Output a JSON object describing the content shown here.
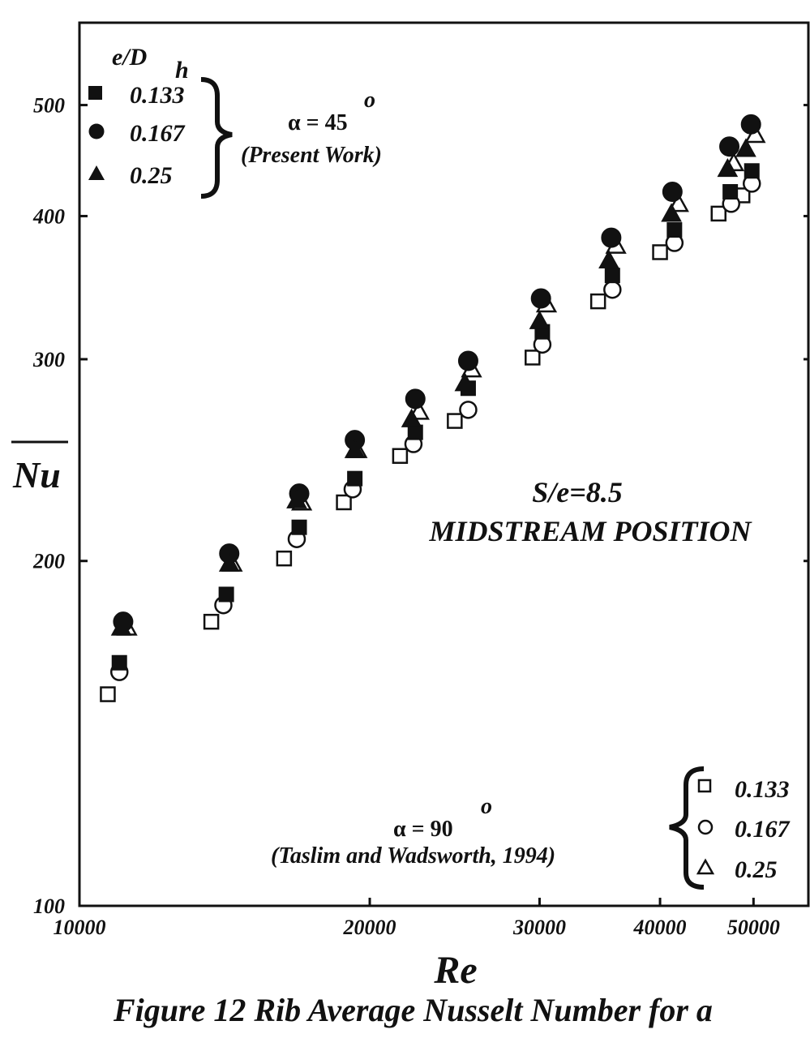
{
  "caption": "Figure 12  Rib Average Nusselt Number for a",
  "chart_data": {
    "type": "scatter",
    "x_scale": "log",
    "y_scale": "log",
    "xlabel": "Re",
    "ylabel": "Nu",
    "xlim": [
      10000,
      57000
    ],
    "ylim": [
      100,
      590
    ],
    "xticks": [
      10000,
      20000,
      30000,
      40000,
      50000
    ],
    "xtick_labels": [
      "10000",
      "20000",
      "30000",
      "40000",
      "50000"
    ],
    "yticks": [
      100,
      200,
      300,
      400,
      500
    ],
    "ytick_labels": [
      "100",
      "200",
      "300",
      "400",
      "500"
    ],
    "grid": false,
    "annotations": {
      "condition": "S/e=8.5",
      "position": "MIDSTREAM  POSITION",
      "present_alpha": "α = 45",
      "present_sup": "o",
      "present_note": "(Present Work)",
      "ref_alpha": "α = 90",
      "ref_sup": "o",
      "ref_note": "(Taslim and Wadsworth, 1994)"
    },
    "legend_present": {
      "title_main": "e/D",
      "title_sub": "h",
      "placement": "top-left",
      "entries": [
        "0.133",
        "0.167",
        "0.25"
      ]
    },
    "legend_reference": {
      "placement": "bottom-right",
      "entries": [
        "0.133",
        "0.167",
        "0.25"
      ]
    },
    "series": [
      {
        "name": "0.133",
        "group": "present",
        "marker": "square",
        "filled": true,
        "x": [
          11000,
          14200,
          16900,
          19300,
          22300,
          25300,
          30200,
          35700,
          41400,
          47300,
          49800
        ],
        "y": [
          163,
          187,
          214,
          236,
          259,
          283,
          317,
          355,
          389,
          420,
          438
        ]
      },
      {
        "name": "0.167",
        "group": "present",
        "marker": "circle",
        "filled": true,
        "x": [
          11100,
          14300,
          16900,
          19300,
          22300,
          25300,
          30100,
          35600,
          41200,
          47200,
          49700
        ],
        "y": [
          177,
          203,
          229,
          255,
          277,
          299,
          339,
          383,
          420,
          460,
          481
        ]
      },
      {
        "name": "0.25",
        "group": "present",
        "marker": "triangle",
        "filled": true,
        "x": [
          11050,
          14300,
          16800,
          19300,
          22100,
          25100,
          30000,
          35400,
          41100,
          47000,
          49100
        ],
        "y": [
          175,
          199,
          226,
          250,
          266,
          286,
          324,
          366,
          402,
          440,
          458
        ]
      },
      {
        "name": "0.133",
        "group": "reference",
        "marker": "square",
        "filled": false,
        "x": [
          10700,
          13700,
          16300,
          18800,
          21500,
          24500,
          29500,
          34500,
          40000,
          46000,
          48700
        ],
        "y": [
          153,
          177,
          201,
          225,
          247,
          265,
          301,
          337,
          372,
          402,
          417
        ]
      },
      {
        "name": "0.167",
        "group": "reference",
        "marker": "circle",
        "filled": false,
        "x": [
          11000,
          14100,
          16800,
          19200,
          22200,
          25300,
          30200,
          35700,
          41400,
          47400,
          49800
        ],
        "y": [
          160,
          183,
          209,
          231,
          253,
          271,
          309,
          345,
          379,
          410,
          427
        ]
      },
      {
        "name": "0.25",
        "group": "reference",
        "marker": "triangle",
        "filled": false,
        "x": [
          11200,
          14400,
          17000,
          19400,
          22500,
          25500,
          30500,
          36000,
          41800,
          47700,
          50200
        ],
        "y": [
          175,
          199,
          225,
          250,
          270,
          294,
          335,
          377,
          410,
          445,
          471
        ]
      }
    ]
  }
}
